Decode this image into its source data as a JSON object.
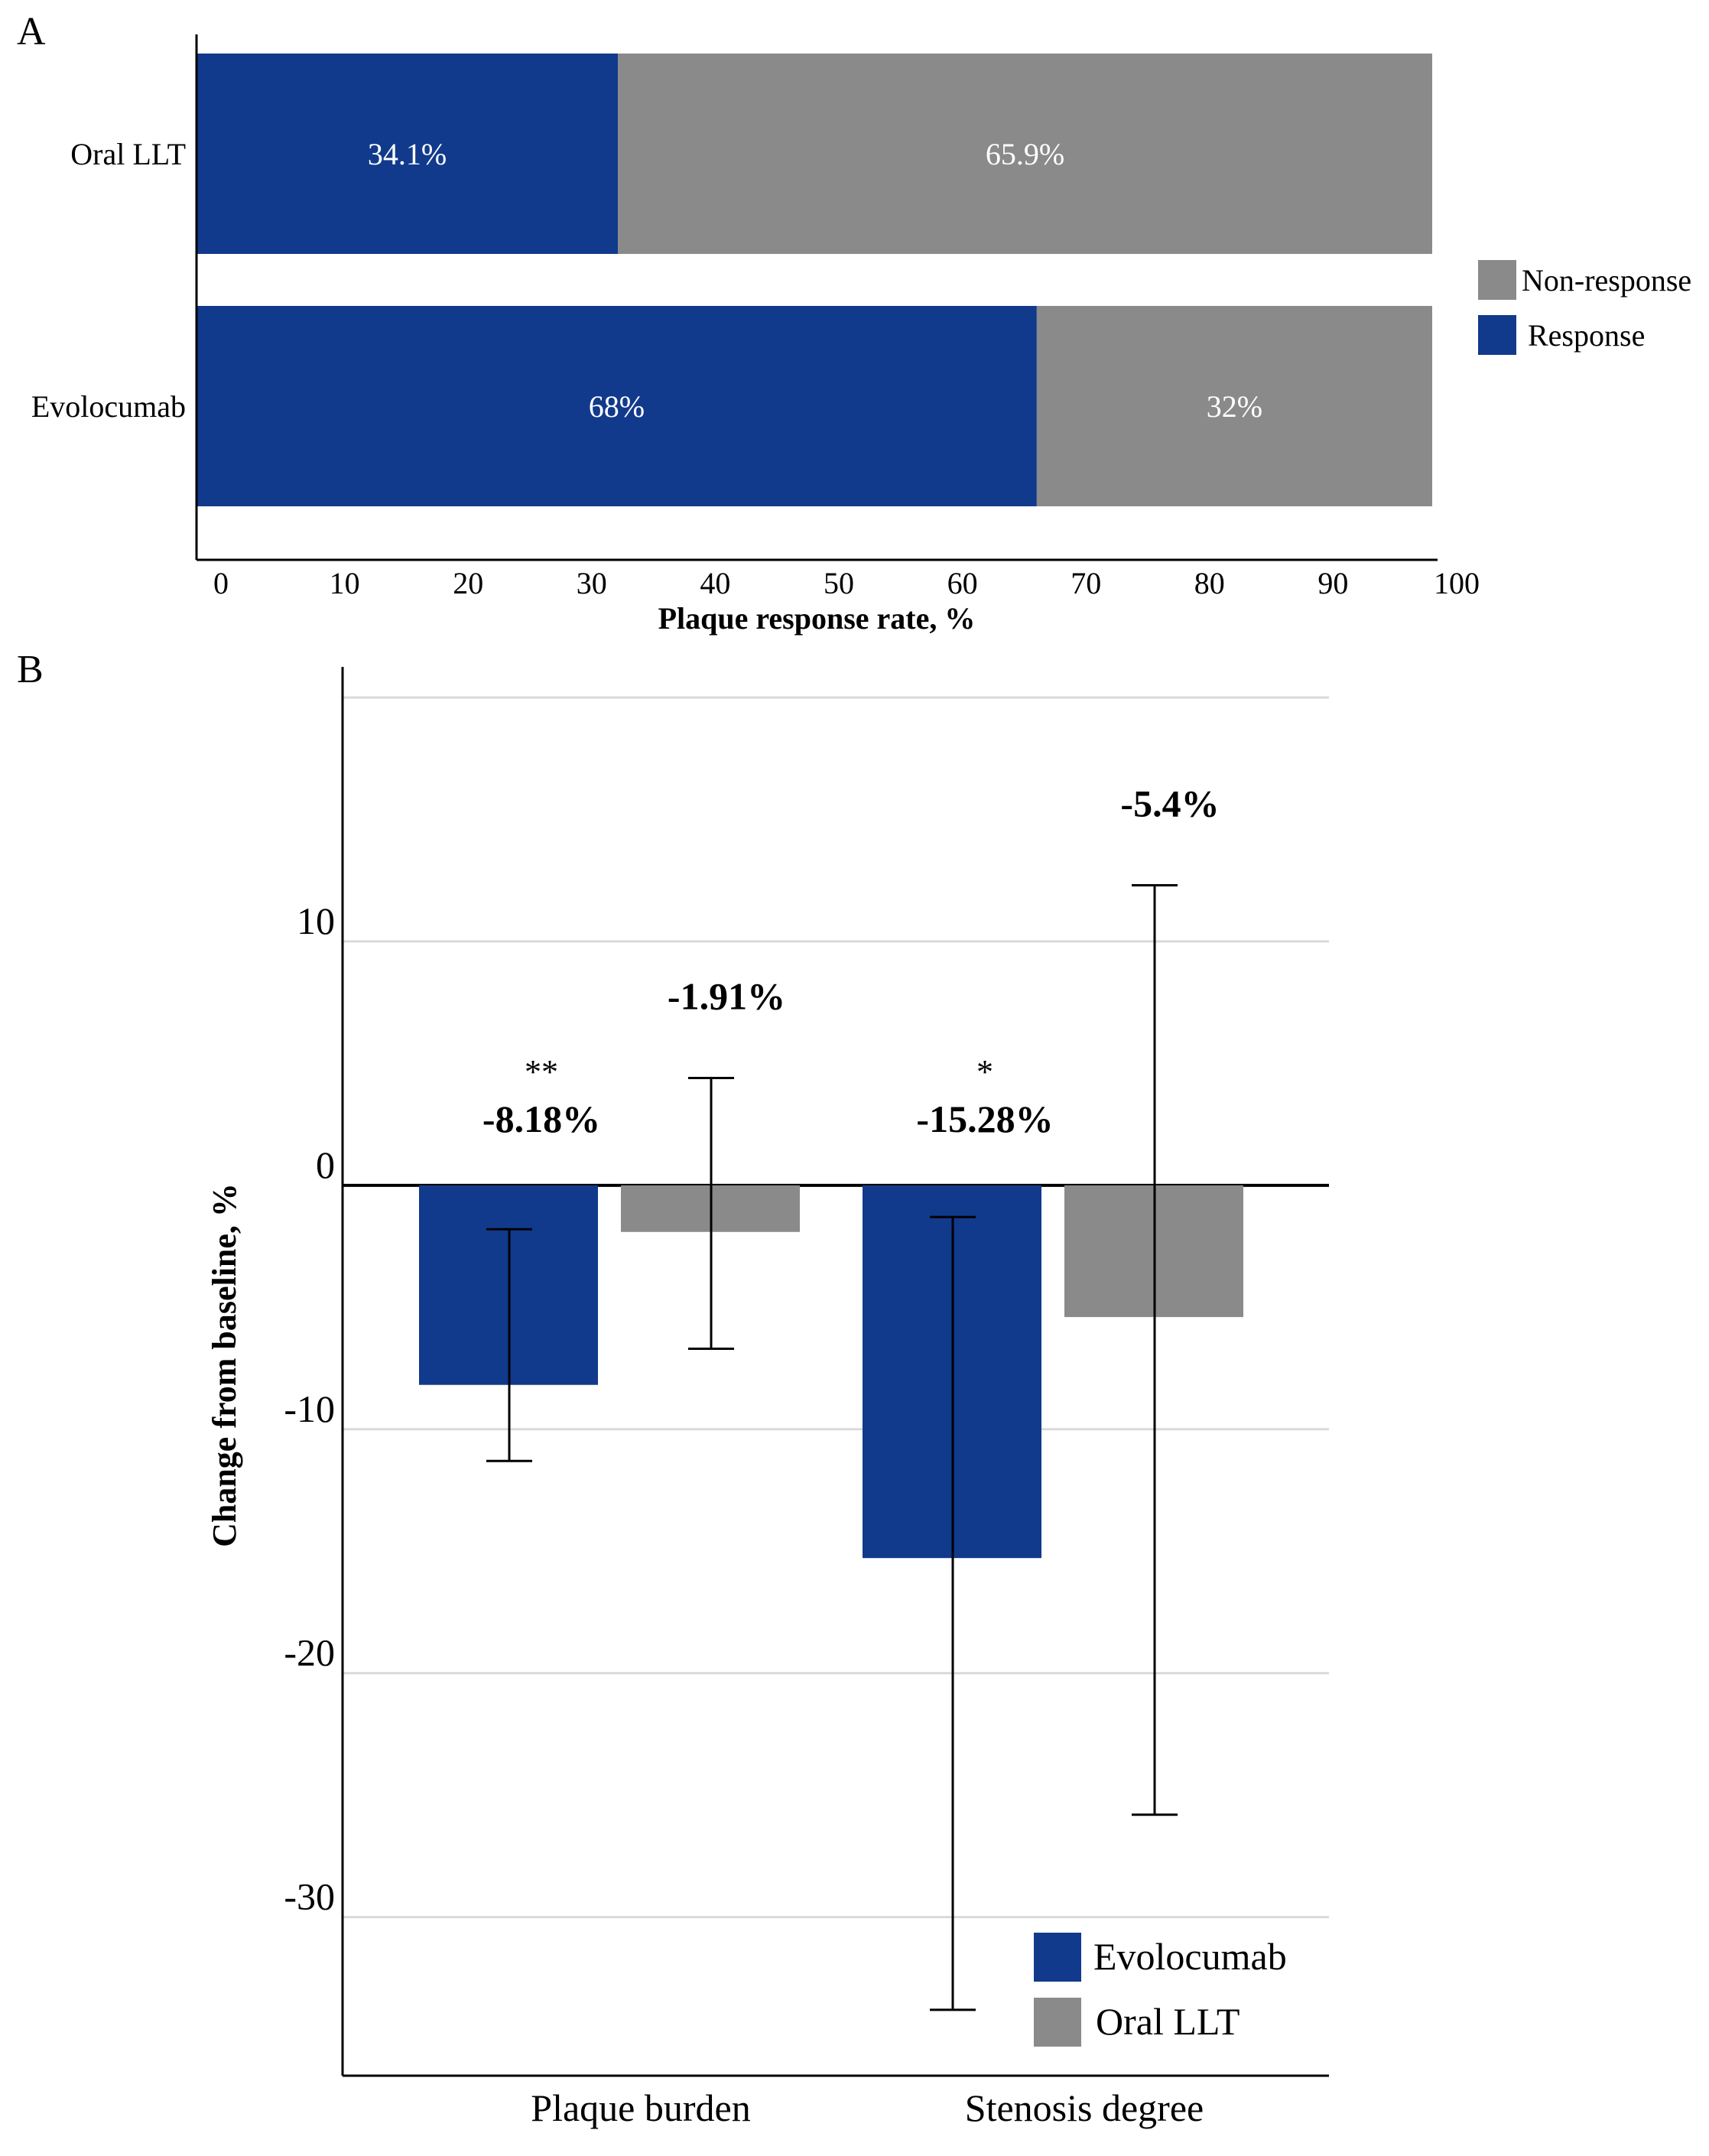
{
  "panel_a": {
    "letter": "A",
    "legend": [
      {
        "label": "Non-response",
        "color": "#8a8a8a"
      },
      {
        "label": "Response",
        "color": "#113a8c"
      }
    ]
  },
  "panel_b": {
    "letter": "B",
    "legend": [
      {
        "label": "Evolocumab",
        "color": "#113a8c"
      },
      {
        "label": "Oral LLT",
        "color": "#8a8a8a"
      }
    ]
  },
  "colors": {
    "response": "#113a8c",
    "non_response": "#8a8a8a",
    "axis": "#000000",
    "grid": "#d9d9d9"
  },
  "chart_data": [
    {
      "type": "bar",
      "orientation": "horizontal",
      "stacked": true,
      "categories": [
        "Oral LLT",
        "Evolocumab"
      ],
      "series": [
        {
          "name": "Response",
          "values": [
            34.1,
            68
          ],
          "labels": [
            "34.1%",
            "68%"
          ]
        },
        {
          "name": "Non-response",
          "values": [
            65.9,
            32
          ],
          "labels": [
            "65.9%",
            "32%"
          ]
        }
      ],
      "xlabel": "Plaque response rate, %",
      "xlim": [
        0,
        100
      ],
      "xticks": [
        0,
        10,
        20,
        30,
        40,
        50,
        60,
        70,
        80,
        90,
        100
      ],
      "legend_position": "right"
    },
    {
      "type": "bar",
      "categories": [
        "Plaque burden",
        "Stenosis degree"
      ],
      "series": [
        {
          "name": "Evolocumab",
          "values": [
            -8.18,
            -15.28
          ],
          "labels": [
            "-8.18%",
            "-15.28%"
          ],
          "significance": [
            "**",
            "*"
          ],
          "error_low": [
            -11.3,
            -33.8
          ],
          "error_high": [
            -1.8,
            -1.3
          ]
        },
        {
          "name": "Oral LLT",
          "values": [
            -1.91,
            -5.4
          ],
          "labels": [
            "-1.91%",
            "-5.4%"
          ],
          "significance": [
            "",
            ""
          ],
          "error_low": [
            -6.7,
            -25.8
          ],
          "error_high": [
            4.4,
            12.3
          ]
        }
      ],
      "ylabel": "Change from baseline, %",
      "ylim": [
        -36.5,
        20.5
      ],
      "yticks": [
        10,
        0,
        -10,
        -20,
        -30
      ],
      "grid": true,
      "legend_position": "bottom-right"
    }
  ]
}
